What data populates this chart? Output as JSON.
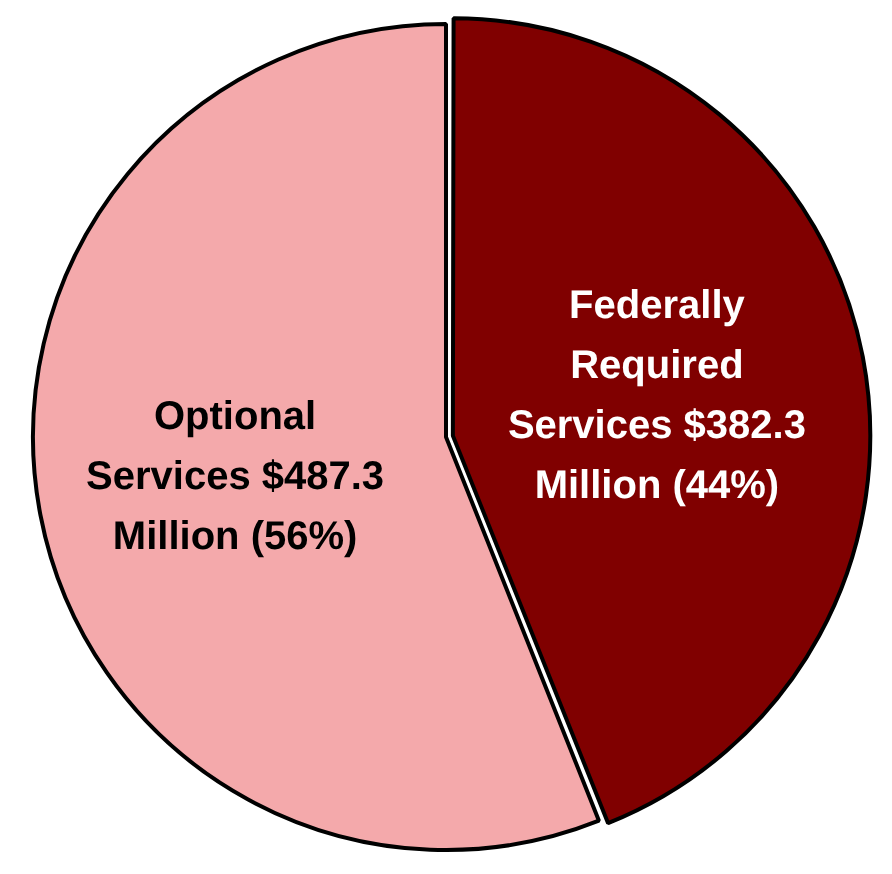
{
  "chart_data": {
    "type": "pie",
    "categories": [
      "Optional Services $487.3 Million (56%)",
      "Federally Required Services $382.3 Million (44%)"
    ],
    "values": [
      487.3,
      382.3
    ],
    "colors": [
      "#f4a9ab",
      "#800000"
    ],
    "legend": false
  }
}
